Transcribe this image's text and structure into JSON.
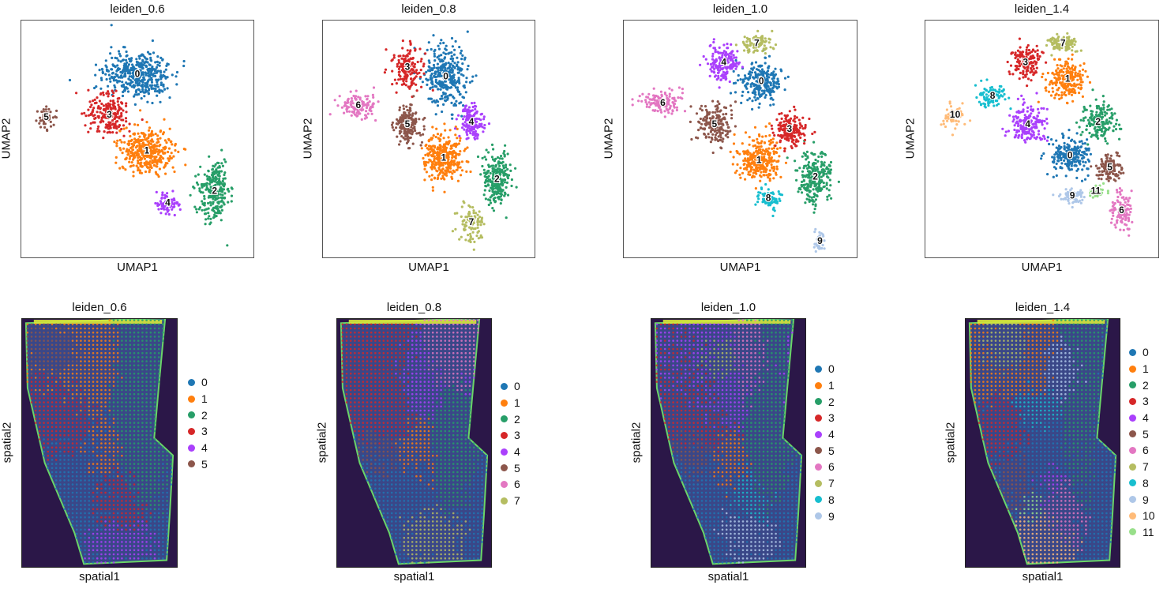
{
  "palette": [
    "#1f77b4",
    "#ff7f0e",
    "#279e68",
    "#d62728",
    "#aa40fc",
    "#8c564b",
    "#e377c2",
    "#b5bd61",
    "#17becf",
    "#aec7e8",
    "#ffbb78",
    "#98df8a"
  ],
  "chart_data": [
    {
      "type": "scatter",
      "kind": "umap",
      "title": "leiden_0.6",
      "xlabel": "UMAP1",
      "ylabel": "UMAP2",
      "clusters": [
        {
          "name": "0",
          "centroid": [
            0.5,
            0.23
          ],
          "spread": [
            0.13,
            0.09
          ],
          "n": 430
        },
        {
          "name": "1",
          "centroid": [
            0.54,
            0.55
          ],
          "spread": [
            0.1,
            0.08
          ],
          "n": 380
        },
        {
          "name": "2",
          "centroid": [
            0.83,
            0.72
          ],
          "spread": [
            0.06,
            0.12
          ],
          "n": 260
        },
        {
          "name": "3",
          "centroid": [
            0.38,
            0.4
          ],
          "spread": [
            0.08,
            0.08
          ],
          "n": 200
        },
        {
          "name": "4",
          "centroid": [
            0.63,
            0.77
          ],
          "spread": [
            0.05,
            0.035
          ],
          "n": 70
        },
        {
          "name": "5",
          "centroid": [
            0.11,
            0.41
          ],
          "spread": [
            0.035,
            0.04
          ],
          "n": 50
        }
      ]
    },
    {
      "type": "scatter",
      "kind": "umap",
      "title": "leiden_0.8",
      "xlabel": "UMAP1",
      "ylabel": "UMAP2",
      "clusters": [
        {
          "name": "0",
          "centroid": [
            0.58,
            0.24
          ],
          "spread": [
            0.09,
            0.12
          ],
          "n": 330
        },
        {
          "name": "1",
          "centroid": [
            0.57,
            0.58
          ],
          "spread": [
            0.08,
            0.09
          ],
          "n": 330
        },
        {
          "name": "2",
          "centroid": [
            0.82,
            0.67
          ],
          "spread": [
            0.06,
            0.1
          ],
          "n": 250
        },
        {
          "name": "3",
          "centroid": [
            0.4,
            0.2
          ],
          "spread": [
            0.06,
            0.08
          ],
          "n": 170
        },
        {
          "name": "4",
          "centroid": [
            0.7,
            0.43
          ],
          "spread": [
            0.05,
            0.06
          ],
          "n": 160
        },
        {
          "name": "5",
          "centroid": [
            0.4,
            0.44
          ],
          "spread": [
            0.06,
            0.07
          ],
          "n": 180
        },
        {
          "name": "6",
          "centroid": [
            0.17,
            0.36
          ],
          "spread": [
            0.08,
            0.04
          ],
          "n": 130
        },
        {
          "name": "7",
          "centroid": [
            0.7,
            0.85
          ],
          "spread": [
            0.06,
            0.07
          ],
          "n": 90
        }
      ]
    },
    {
      "type": "scatter",
      "kind": "umap",
      "title": "leiden_1.0",
      "xlabel": "UMAP1",
      "ylabel": "UMAP2",
      "clusters": [
        {
          "name": "0",
          "centroid": [
            0.59,
            0.26
          ],
          "spread": [
            0.08,
            0.07
          ],
          "n": 240
        },
        {
          "name": "1",
          "centroid": [
            0.58,
            0.59
          ],
          "spread": [
            0.08,
            0.08
          ],
          "n": 280
        },
        {
          "name": "2",
          "centroid": [
            0.82,
            0.66
          ],
          "spread": [
            0.06,
            0.1
          ],
          "n": 250
        },
        {
          "name": "3",
          "centroid": [
            0.71,
            0.46
          ],
          "spread": [
            0.06,
            0.06
          ],
          "n": 170
        },
        {
          "name": "4",
          "centroid": [
            0.43,
            0.18
          ],
          "spread": [
            0.06,
            0.07
          ],
          "n": 170
        },
        {
          "name": "5",
          "centroid": [
            0.39,
            0.44
          ],
          "spread": [
            0.07,
            0.07
          ],
          "n": 180
        },
        {
          "name": "6",
          "centroid": [
            0.17,
            0.35
          ],
          "spread": [
            0.08,
            0.04
          ],
          "n": 130
        },
        {
          "name": "7",
          "centroid": [
            0.57,
            0.1
          ],
          "spread": [
            0.06,
            0.035
          ],
          "n": 90
        },
        {
          "name": "8",
          "centroid": [
            0.62,
            0.75
          ],
          "spread": [
            0.05,
            0.04
          ],
          "n": 80
        },
        {
          "name": "9",
          "centroid": [
            0.84,
            0.93
          ],
          "spread": [
            0.02,
            0.04
          ],
          "n": 40
        }
      ]
    },
    {
      "type": "scatter",
      "kind": "umap",
      "title": "leiden_1.4",
      "xlabel": "UMAP1",
      "ylabel": "UMAP2",
      "clusters": [
        {
          "name": "0",
          "centroid": [
            0.62,
            0.57
          ],
          "spread": [
            0.07,
            0.07
          ],
          "n": 220
        },
        {
          "name": "1",
          "centroid": [
            0.61,
            0.25
          ],
          "spread": [
            0.07,
            0.08
          ],
          "n": 220
        },
        {
          "name": "2",
          "centroid": [
            0.74,
            0.43
          ],
          "spread": [
            0.06,
            0.07
          ],
          "n": 170
        },
        {
          "name": "3",
          "centroid": [
            0.43,
            0.18
          ],
          "spread": [
            0.06,
            0.06
          ],
          "n": 150
        },
        {
          "name": "4",
          "centroid": [
            0.44,
            0.44
          ],
          "spread": [
            0.07,
            0.07
          ],
          "n": 200
        },
        {
          "name": "5",
          "centroid": [
            0.79,
            0.62
          ],
          "spread": [
            0.05,
            0.05
          ],
          "n": 130
        },
        {
          "name": "6",
          "centroid": [
            0.84,
            0.8
          ],
          "spread": [
            0.04,
            0.08
          ],
          "n": 110
        },
        {
          "name": "7",
          "centroid": [
            0.59,
            0.1
          ],
          "spread": [
            0.06,
            0.035
          ],
          "n": 90
        },
        {
          "name": "8",
          "centroid": [
            0.29,
            0.32
          ],
          "spread": [
            0.06,
            0.045
          ],
          "n": 100
        },
        {
          "name": "9",
          "centroid": [
            0.63,
            0.74
          ],
          "spread": [
            0.05,
            0.03
          ],
          "n": 70
        },
        {
          "name": "10",
          "centroid": [
            0.13,
            0.4
          ],
          "spread": [
            0.045,
            0.04
          ],
          "n": 60
        },
        {
          "name": "11",
          "centroid": [
            0.73,
            0.72
          ],
          "spread": [
            0.03,
            0.025
          ],
          "n": 40
        }
      ]
    },
    {
      "type": "scatter",
      "kind": "spatial",
      "title": "leiden_0.6",
      "xlabel": "spatial1",
      "ylabel": "spatial2",
      "legend": [
        "0",
        "1",
        "2",
        "3",
        "4",
        "5"
      ],
      "regions": [
        {
          "cluster": "1",
          "centroid": [
            0.4,
            0.25
          ],
          "spread": [
            0.17,
            0.12
          ]
        },
        {
          "cluster": "1",
          "centroid": [
            0.5,
            0.55
          ],
          "spread": [
            0.12,
            0.12
          ]
        },
        {
          "cluster": "3",
          "centroid": [
            0.3,
            0.4
          ],
          "spread": [
            0.14,
            0.15
          ]
        },
        {
          "cluster": "3",
          "centroid": [
            0.55,
            0.72
          ],
          "spread": [
            0.12,
            0.12
          ]
        },
        {
          "cluster": "0",
          "centroid": [
            0.4,
            0.65
          ],
          "spread": [
            0.2,
            0.2
          ]
        },
        {
          "cluster": "2",
          "centroid": [
            0.7,
            0.4
          ],
          "spread": [
            0.1,
            0.2
          ]
        },
        {
          "cluster": "4",
          "centroid": [
            0.55,
            0.88
          ],
          "spread": [
            0.12,
            0.06
          ]
        },
        {
          "cluster": "5",
          "centroid": [
            0.25,
            0.15
          ],
          "spread": [
            0.1,
            0.06
          ]
        }
      ]
    },
    {
      "type": "scatter",
      "kind": "spatial",
      "title": "leiden_0.8",
      "xlabel": "spatial1",
      "ylabel": "spatial2",
      "legend": [
        "0",
        "1",
        "2",
        "3",
        "4",
        "5",
        "6",
        "7"
      ],
      "regions": [
        {
          "cluster": "4",
          "centroid": [
            0.55,
            0.28
          ],
          "spread": [
            0.15,
            0.1
          ]
        },
        {
          "cluster": "3",
          "centroid": [
            0.35,
            0.35
          ],
          "spread": [
            0.15,
            0.15
          ]
        },
        {
          "cluster": "1",
          "centroid": [
            0.5,
            0.55
          ],
          "spread": [
            0.12,
            0.12
          ]
        },
        {
          "cluster": "0",
          "centroid": [
            0.4,
            0.7
          ],
          "spread": [
            0.2,
            0.18
          ]
        },
        {
          "cluster": "7",
          "centroid": [
            0.55,
            0.85
          ],
          "spread": [
            0.12,
            0.08
          ]
        },
        {
          "cluster": "6",
          "centroid": [
            0.7,
            0.2
          ],
          "spread": [
            0.08,
            0.1
          ]
        },
        {
          "cluster": "5",
          "centroid": [
            0.3,
            0.55
          ],
          "spread": [
            0.1,
            0.1
          ]
        },
        {
          "cluster": "2",
          "centroid": [
            0.7,
            0.45
          ],
          "spread": [
            0.08,
            0.2
          ]
        }
      ]
    },
    {
      "type": "scatter",
      "kind": "spatial",
      "title": "leiden_1.0",
      "xlabel": "spatial1",
      "ylabel": "spatial2",
      "legend": [
        "0",
        "1",
        "2",
        "3",
        "4",
        "5",
        "6",
        "7",
        "8",
        "9"
      ],
      "regions": [
        {
          "cluster": "4",
          "centroid": [
            0.45,
            0.3
          ],
          "spread": [
            0.18,
            0.12
          ]
        },
        {
          "cluster": "3",
          "centroid": [
            0.35,
            0.4
          ],
          "spread": [
            0.15,
            0.15
          ]
        },
        {
          "cluster": "1",
          "centroid": [
            0.5,
            0.6
          ],
          "spread": [
            0.12,
            0.12
          ]
        },
        {
          "cluster": "0",
          "centroid": [
            0.4,
            0.72
          ],
          "spread": [
            0.2,
            0.18
          ]
        },
        {
          "cluster": "9",
          "centroid": [
            0.55,
            0.85
          ],
          "spread": [
            0.12,
            0.08
          ]
        },
        {
          "cluster": "6",
          "centroid": [
            0.62,
            0.22
          ],
          "spread": [
            0.08,
            0.1
          ]
        },
        {
          "cluster": "5",
          "centroid": [
            0.3,
            0.55
          ],
          "spread": [
            0.1,
            0.1
          ]
        },
        {
          "cluster": "2",
          "centroid": [
            0.7,
            0.45
          ],
          "spread": [
            0.08,
            0.2
          ]
        },
        {
          "cluster": "8",
          "centroid": [
            0.6,
            0.7
          ],
          "spread": [
            0.1,
            0.1
          ]
        },
        {
          "cluster": "7",
          "centroid": [
            0.45,
            0.2
          ],
          "spread": [
            0.1,
            0.06
          ]
        }
      ]
    },
    {
      "type": "scatter",
      "kind": "spatial",
      "title": "leiden_1.4",
      "xlabel": "spatial1",
      "ylabel": "spatial2",
      "legend": [
        "0",
        "1",
        "2",
        "3",
        "4",
        "5",
        "6",
        "7",
        "8",
        "9",
        "10",
        "11"
      ],
      "regions": [
        {
          "cluster": "0",
          "centroid": [
            0.5,
            0.55
          ],
          "spread": [
            0.2,
            0.2
          ]
        },
        {
          "cluster": "8",
          "centroid": [
            0.45,
            0.35
          ],
          "spread": [
            0.15,
            0.1
          ]
        },
        {
          "cluster": "9",
          "centroid": [
            0.6,
            0.25
          ],
          "spread": [
            0.1,
            0.08
          ]
        },
        {
          "cluster": "1",
          "centroid": [
            0.4,
            0.25
          ],
          "spread": [
            0.15,
            0.1
          ]
        },
        {
          "cluster": "3",
          "centroid": [
            0.3,
            0.45
          ],
          "spread": [
            0.1,
            0.12
          ]
        },
        {
          "cluster": "10",
          "centroid": [
            0.5,
            0.85
          ],
          "spread": [
            0.12,
            0.08
          ]
        },
        {
          "cluster": "6",
          "centroid": [
            0.6,
            0.75
          ],
          "spread": [
            0.1,
            0.1
          ]
        },
        {
          "cluster": "2",
          "centroid": [
            0.7,
            0.45
          ],
          "spread": [
            0.08,
            0.2
          ]
        },
        {
          "cluster": "5",
          "centroid": [
            0.35,
            0.65
          ],
          "spread": [
            0.1,
            0.1
          ]
        },
        {
          "cluster": "4",
          "centroid": [
            0.55,
            0.65
          ],
          "spread": [
            0.1,
            0.1
          ]
        },
        {
          "cluster": "7",
          "centroid": [
            0.3,
            0.15
          ],
          "spread": [
            0.08,
            0.06
          ]
        },
        {
          "cluster": "11",
          "centroid": [
            0.45,
            0.75
          ],
          "spread": [
            0.08,
            0.06
          ]
        }
      ]
    }
  ]
}
